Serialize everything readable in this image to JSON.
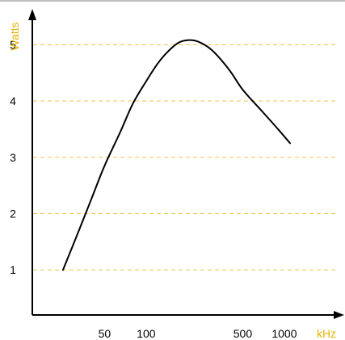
{
  "chart_data": {
    "type": "line",
    "title": "",
    "xlabel": "kHz",
    "ylabel": "Watts",
    "xscale": "log",
    "xlim": [
      15,
      2500
    ],
    "ylim": [
      0.2,
      5.65
    ],
    "x_ticks": [
      50,
      100,
      500,
      1000
    ],
    "x_tick_labels": [
      "50",
      "100",
      "500",
      "1000"
    ],
    "y_ticks": [
      1,
      2,
      3,
      4,
      5
    ],
    "y_tick_labels": [
      "1",
      "2",
      "3",
      "4",
      "5"
    ],
    "grid": "horizontal dashed",
    "series": [
      {
        "x": [
          25,
          32,
          40,
          50,
          65,
          80,
          100,
          120,
          140,
          170,
          200,
          240,
          300,
          400,
          500,
          700,
          900,
          1100
        ],
        "y": [
          1.0,
          1.65,
          2.25,
          2.85,
          3.45,
          3.95,
          4.35,
          4.65,
          4.85,
          5.03,
          5.08,
          5.05,
          4.9,
          4.55,
          4.2,
          3.8,
          3.5,
          3.25
        ]
      }
    ],
    "colors": {
      "curve": "#000000",
      "axis": "#000000",
      "grid": "#e6c84a",
      "axis_label": "#e6b400"
    }
  }
}
